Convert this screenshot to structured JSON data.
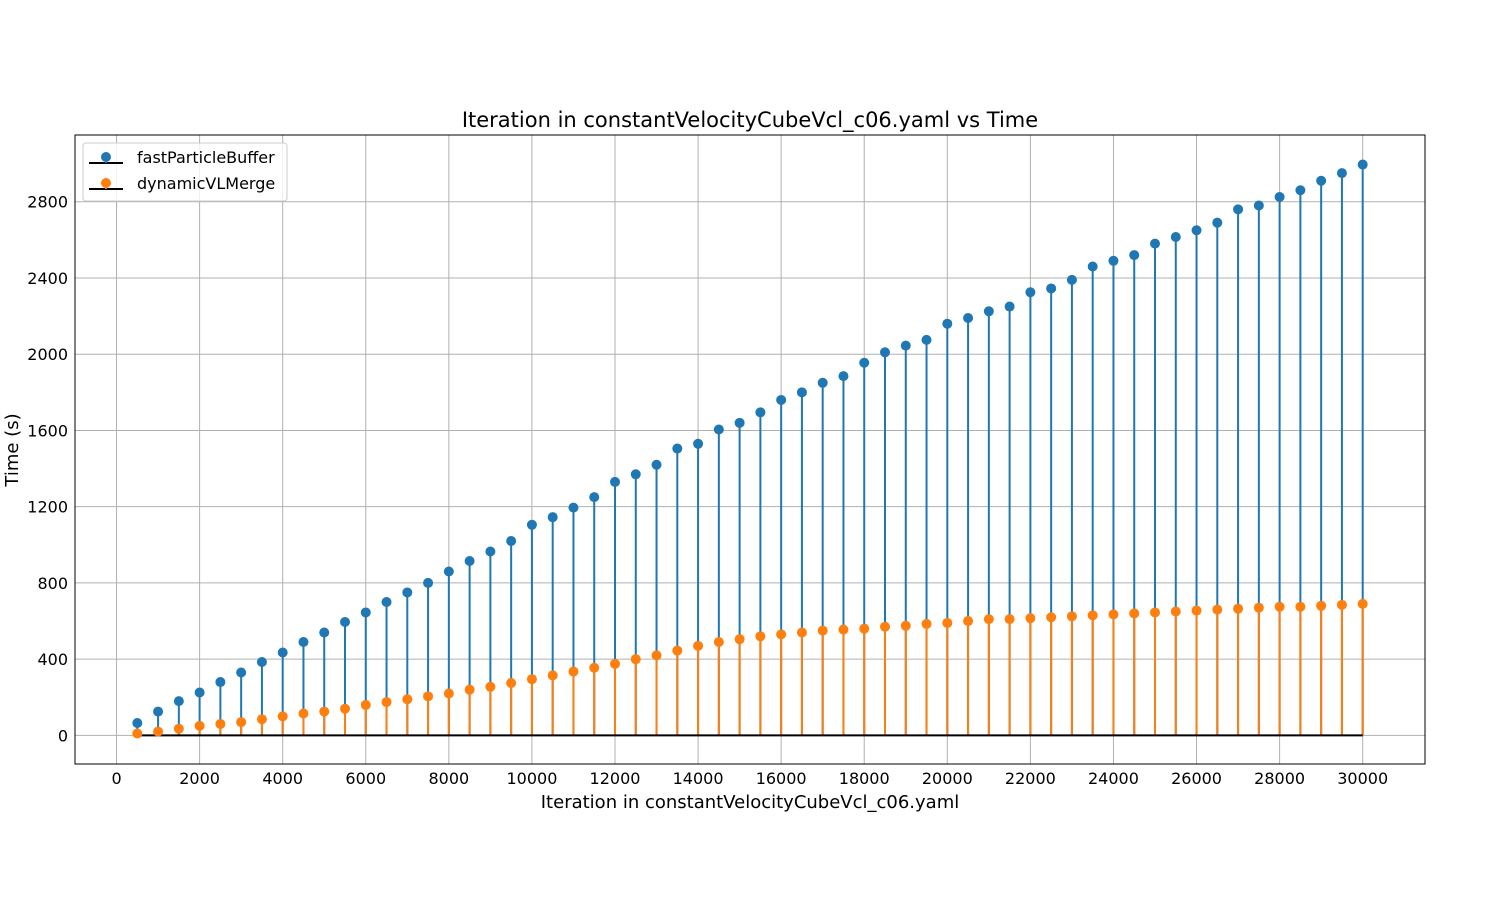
{
  "chart_data": {
    "type": "stem",
    "title": "Iteration in constantVelocityCubeVcl_c06.yaml vs Time",
    "xlabel": "Iteration in constantVelocityCubeVcl_c06.yaml",
    "ylabel": "Time (s)",
    "xlim": [
      -1000,
      31500
    ],
    "ylim": [
      -150,
      3150
    ],
    "xticks": [
      0,
      2000,
      4000,
      6000,
      8000,
      10000,
      12000,
      14000,
      16000,
      18000,
      20000,
      22000,
      24000,
      26000,
      28000,
      30000
    ],
    "yticks": [
      0,
      400,
      800,
      1200,
      1600,
      2000,
      2400,
      2800
    ],
    "grid": true,
    "legend_position": "upper-left",
    "baseline": 0,
    "x": [
      500,
      1000,
      1500,
      2000,
      2500,
      3000,
      3500,
      4000,
      4500,
      5000,
      5500,
      6000,
      6500,
      7000,
      7500,
      8000,
      8500,
      9000,
      9500,
      10000,
      10500,
      11000,
      11500,
      12000,
      12500,
      13000,
      13500,
      14000,
      14500,
      15000,
      15500,
      16000,
      16500,
      17000,
      17500,
      18000,
      18500,
      19000,
      19500,
      20000,
      20500,
      21000,
      21500,
      22000,
      22500,
      23000,
      23500,
      24000,
      24500,
      25000,
      25500,
      26000,
      26500,
      27000,
      27500,
      28000,
      28500,
      29000,
      29500,
      30000
    ],
    "series": [
      {
        "name": "fastParticleBuffer",
        "color": "#1f77b4",
        "values": [
          65,
          125,
          180,
          225,
          280,
          330,
          385,
          435,
          490,
          540,
          595,
          645,
          700,
          750,
          800,
          860,
          915,
          965,
          1020,
          1105,
          1145,
          1195,
          1250,
          1330,
          1370,
          1420,
          1505,
          1530,
          1605,
          1640,
          1695,
          1760,
          1800,
          1850,
          1885,
          1955,
          2010,
          2045,
          2075,
          2160,
          2190,
          2225,
          2250,
          2325,
          2345,
          2390,
          2460,
          2490,
          2520,
          2580,
          2615,
          2650,
          2690,
          2760,
          2780,
          2825,
          2860,
          2910,
          2950,
          2995
        ]
      },
      {
        "name": "dynamicVLMerge",
        "color": "#ff7f0e",
        "values": [
          10,
          20,
          35,
          50,
          60,
          70,
          85,
          100,
          115,
          125,
          140,
          160,
          175,
          190,
          205,
          220,
          240,
          255,
          275,
          295,
          315,
          335,
          355,
          375,
          400,
          420,
          445,
          470,
          490,
          505,
          520,
          530,
          540,
          550,
          555,
          560,
          570,
          575,
          585,
          590,
          600,
          610,
          610,
          615,
          620,
          625,
          630,
          635,
          640,
          645,
          650,
          655,
          660,
          665,
          670,
          675,
          675,
          680,
          685,
          690
        ]
      }
    ]
  }
}
